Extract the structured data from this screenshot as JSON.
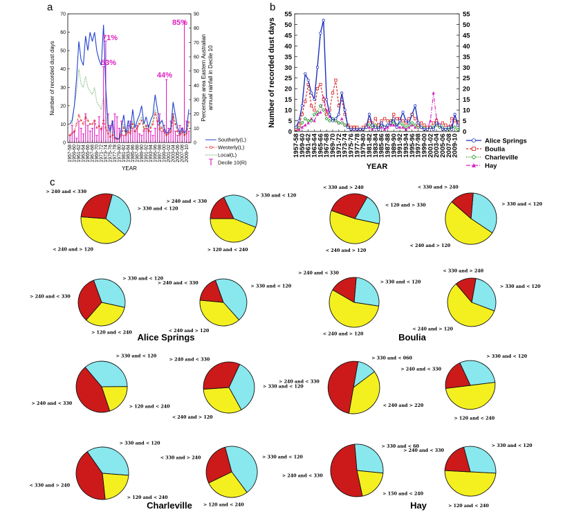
{
  "panel_labels": {
    "a": "a",
    "b": "b",
    "c": "c"
  },
  "colors": {
    "southerly": "#2040d0",
    "westerly": "#e02020",
    "local": "#2a8a2a",
    "decile": "#e020c0",
    "alice": "#1a2fb8",
    "boulia": "#d81818",
    "charleville": "#189018",
    "hay": "#d820c0",
    "pie_cyan": "#88e8ee",
    "pie_red": "#cc1a1a",
    "pie_yellow": "#f4f020"
  },
  "chart_data": [
    {
      "id": "a",
      "type": "line",
      "ylabel_left": "Number of recorded dust days",
      "ylabel_right": "Percentage area Eastern Australian annual rainfall in Decile 10",
      "xlabel": "YEAR",
      "ylim_left": [
        0,
        70
      ],
      "ylim_right": [
        0,
        90
      ],
      "yticks_left": [
        0,
        10,
        20,
        30,
        40,
        50,
        60,
        70
      ],
      "yticks_right": [
        0,
        10,
        20,
        30,
        40,
        50,
        60,
        70,
        80,
        90
      ],
      "x": [
        1957,
        1958,
        1959,
        1960,
        1961,
        1962,
        1963,
        1964,
        1965,
        1966,
        1967,
        1968,
        1969,
        1970,
        1971,
        1972,
        1973,
        1974,
        1975,
        1976,
        1977,
        1978,
        1979,
        1980,
        1981,
        1982,
        1983,
        1984,
        1985,
        1986,
        1987,
        1988,
        1989,
        1990,
        1991,
        1992,
        1993,
        1994,
        1995,
        1996,
        1997,
        1998,
        1999,
        2000,
        2001,
        2002,
        2003,
        2004,
        2005,
        2006,
        2007,
        2008,
        2009,
        2010
      ],
      "x_tick_labels": [
        "1957-58",
        "1959-60",
        "1961-62",
        "1963-64",
        "1965-66",
        "1967-68",
        "1969-70",
        "1971-72",
        "1973-74",
        "1975-76",
        "1977-78",
        "1979-80",
        "1981-82",
        "1983-84",
        "1985-86",
        "1987-88",
        "1989-90",
        "1991-92",
        "1993-94",
        "1995-96",
        "1997-98",
        "1999-00",
        "2001-02",
        "2003-04",
        "2005-06",
        "2007-08",
        "2009-10"
      ],
      "series": [
        {
          "name": "Southerly(L)",
          "axis": "left",
          "values": [
            10,
            12,
            20,
            35,
            55,
            45,
            42,
            58,
            50,
            60,
            55,
            60,
            50,
            45,
            42,
            64,
            30,
            10,
            6,
            12,
            3,
            2,
            2,
            8,
            15,
            5,
            12,
            7,
            18,
            8,
            12,
            15,
            20,
            10,
            14,
            8,
            12,
            15,
            26,
            18,
            10,
            12,
            8,
            5,
            6,
            8,
            22,
            15,
            8,
            5,
            8,
            5,
            7,
            18
          ]
        },
        {
          "name": "Westerly(L)",
          "axis": "left",
          "values": [
            4,
            5,
            6,
            10,
            15,
            12,
            10,
            14,
            12,
            10,
            10,
            12,
            8,
            9,
            7,
            12,
            8,
            5,
            3,
            4,
            2,
            2,
            2,
            4,
            8,
            4,
            6,
            5,
            10,
            6,
            8,
            10,
            12,
            7,
            9,
            6,
            8,
            10,
            16,
            12,
            7,
            8,
            6,
            4,
            5,
            6,
            14,
            10,
            6,
            4,
            6,
            4,
            5,
            11
          ]
        },
        {
          "name": "Local(L)",
          "axis": "left",
          "values": [
            12,
            10,
            20,
            28,
            40,
            32,
            30,
            36,
            30,
            28,
            26,
            30,
            22,
            20,
            18,
            25,
            15,
            8,
            5,
            6,
            2,
            2,
            2,
            5,
            10,
            4,
            8,
            6,
            12,
            6,
            9,
            12,
            14,
            8,
            10,
            6,
            9,
            12,
            18,
            13,
            8,
            9,
            6,
            4,
            5,
            6,
            16,
            11,
            6,
            4,
            6,
            4,
            5,
            12
          ]
        },
        {
          "name": "Decile 10(R)",
          "axis": "right",
          "type": "stem",
          "values": [
            5,
            12,
            8,
            3,
            15,
            10,
            6,
            20,
            12,
            8,
            10,
            15,
            5,
            18,
            10,
            53,
            71,
            20,
            12,
            15,
            20,
            18,
            10,
            15,
            5,
            8,
            12,
            15,
            10,
            8,
            12,
            6,
            5,
            8,
            10,
            12,
            8,
            5,
            10,
            15,
            20,
            8,
            12,
            44,
            10,
            15,
            20,
            8,
            5,
            12,
            10,
            85,
            15,
            8
          ]
        }
      ],
      "annotations": [
        "85%",
        "71%",
        "53%",
        "44%"
      ]
    },
    {
      "id": "b",
      "type": "line",
      "ylabel": "Number of recorded dust days",
      "xlabel": "YEAR",
      "ylim": [
        0,
        55
      ],
      "yticks": [
        0,
        5,
        10,
        15,
        20,
        25,
        30,
        35,
        40,
        45,
        50,
        55
      ],
      "x": [
        1957,
        1958,
        1959,
        1960,
        1961,
        1962,
        1963,
        1964,
        1965,
        1966,
        1967,
        1968,
        1969,
        1970,
        1971,
        1972,
        1973,
        1974,
        1975,
        1976,
        1977,
        1978,
        1979,
        1980,
        1981,
        1982,
        1983,
        1984,
        1985,
        1986,
        1987,
        1988,
        1989,
        1990,
        1991,
        1992,
        1993,
        1994,
        1995,
        1996,
        1997,
        1998,
        1999,
        2000,
        2001,
        2002,
        2003,
        2004,
        2005,
        2006,
        2007,
        2008,
        2009,
        2010
      ],
      "x_tick_labels": [
        "1957-58",
        "1959-60",
        "1961-62",
        "1963-64",
        "1965-66",
        "1967-68",
        "1969-70",
        "1971-72",
        "1973-74",
        "1975-76",
        "1977-78",
        "1979-80",
        "1981-82",
        "1983-84",
        "1985-86",
        "1987-88",
        "1989-90",
        "1991-92",
        "1993-94",
        "1995-96",
        "1997-98",
        "1999-00",
        "2001-02",
        "2003-04",
        "2005-06",
        "2007-08",
        "2009-10"
      ],
      "series": [
        {
          "name": "Alice Springs",
          "values": [
            2,
            5,
            12,
            27,
            24,
            18,
            15,
            30,
            46,
            52,
            15,
            8,
            5,
            6,
            8,
            18,
            10,
            2,
            1,
            1,
            1,
            1,
            1,
            2,
            8,
            3,
            2,
            1,
            4,
            2,
            3,
            4,
            6,
            2,
            5,
            9,
            5,
            4,
            8,
            12,
            4,
            2,
            1,
            1,
            2,
            1,
            4,
            3,
            1,
            1,
            2,
            1,
            8,
            3
          ]
        },
        {
          "name": "Boulia",
          "values": [
            1,
            3,
            8,
            14,
            22,
            12,
            10,
            20,
            22,
            15,
            8,
            10,
            18,
            24,
            12,
            15,
            8,
            3,
            2,
            2,
            2,
            1,
            2,
            3,
            5,
            4,
            6,
            3,
            5,
            6,
            5,
            4,
            8,
            6,
            6,
            5,
            4,
            6,
            8,
            6,
            3,
            4,
            3,
            2,
            2,
            4,
            5,
            3,
            4,
            3,
            2,
            6,
            5,
            4
          ]
        },
        {
          "name": "Charleville",
          "values": [
            1,
            2,
            4,
            6,
            5,
            5,
            8,
            9,
            12,
            10,
            6,
            5,
            6,
            5,
            4,
            4,
            3,
            2,
            1,
            2,
            1,
            1,
            1,
            2,
            3,
            2,
            3,
            2,
            3,
            2,
            3,
            5,
            4,
            3,
            4,
            3,
            2,
            3,
            4,
            3,
            2,
            2,
            2,
            1,
            2,
            2,
            3,
            2,
            2,
            1,
            1,
            2,
            2,
            1
          ]
        },
        {
          "name": "Hay",
          "values": [
            1,
            1,
            2,
            3,
            4,
            6,
            5,
            8,
            9,
            16,
            10,
            7,
            6,
            5,
            4,
            6,
            3,
            2,
            1,
            1,
            1,
            1,
            1,
            2,
            2,
            1,
            2,
            1,
            2,
            1,
            2,
            3,
            3,
            2,
            2,
            2,
            1,
            2,
            3,
            2,
            2,
            2,
            1,
            1,
            5,
            18,
            6,
            3,
            2,
            1,
            2,
            3,
            8,
            3
          ]
        }
      ]
    },
    {
      "id": "c",
      "type": "pie",
      "pies": [
        {
          "slices": [
            {
              "label": "> 330 and < 120",
              "color": "cyan",
              "value": 32
            },
            {
              "label": "< 240 and > 120",
              "color": "yellow",
              "value": 40
            },
            {
              "label": "> 240 and < 330",
              "color": "red",
              "value": 28
            }
          ]
        },
        {
          "slices": [
            {
              "label": "> 330 and < 120",
              "color": "cyan",
              "value": 38
            },
            {
              "label": "> 120 and < 240",
              "color": "yellow",
              "value": 44
            },
            {
              "label": "> 240 and < 330",
              "color": "red",
              "value": 18
            }
          ]
        },
        {
          "slices": [
            {
              "label": "< 120 and > 330",
              "color": "cyan",
              "value": 20
            },
            {
              "label": "< 240 and > 120",
              "color": "yellow",
              "value": 52
            },
            {
              "label": "< 330 and > 240",
              "color": "red",
              "value": 28
            }
          ]
        },
        {
          "slices": [
            {
              "label": "> 330 and < 120",
              "color": "cyan",
              "value": 33
            },
            {
              "label": "< 240 and > 120",
              "color": "yellow",
              "value": 52
            },
            {
              "label": "< 330 and > 240",
              "color": "red",
              "value": 15
            }
          ]
        },
        {
          "slices": [
            {
              "label": "> 330 and < 120",
              "color": "cyan",
              "value": 34
            },
            {
              "label": "> 120 and < 240",
              "color": "yellow",
              "value": 33
            },
            {
              "label": "> 240 and < 330",
              "color": "red",
              "value": 33
            }
          ]
        },
        {
          "slices": [
            {
              "label": "> 330 and < 120",
              "color": "cyan",
              "value": 44
            },
            {
              "label": "< 240 and > 120",
              "color": "yellow",
              "value": 38
            },
            {
              "label": "> 240 and < 330",
              "color": "red",
              "value": 18
            }
          ]
        },
        {
          "slices": [
            {
              "label": "> 330 and < 120",
              "color": "cyan",
              "value": 26
            },
            {
              "label": "< 240 and > 120",
              "color": "yellow",
              "value": 56
            },
            {
              "label": "> 240 and < 330",
              "color": "red",
              "value": 18
            }
          ]
        },
        {
          "slices": [
            {
              "label": "> 330 and < 120",
              "color": "cyan",
              "value": 28
            },
            {
              "label": "< 240 and > 120",
              "color": "yellow",
              "value": 58
            },
            {
              "label": "< 330 and > 240",
              "color": "red",
              "value": 14
            }
          ]
        },
        {
          "slices": [
            {
              "label": "> 330 and < 120",
              "color": "cyan",
              "value": 36
            },
            {
              "label": "> 120 and < 240",
              "color": "yellow",
              "value": 20
            },
            {
              "label": "> 240 and < 330",
              "color": "red",
              "value": 44
            }
          ]
        },
        {
          "slices": [
            {
              "label": "> 330 and < 120",
              "color": "cyan",
              "value": 35
            },
            {
              "label": "< 240 and > 120",
              "color": "yellow",
              "value": 32
            },
            {
              "label": "> 240 and < 330",
              "color": "red",
              "value": 33
            }
          ]
        },
        {
          "slices": [
            {
              "label": "> 330 and < 060",
              "color": "cyan",
              "value": 12
            },
            {
              "label": "< 240 and > 220",
              "color": "yellow",
              "value": 38
            },
            {
              "label": "> 240 and < 330",
              "color": "red",
              "value": 50
            }
          ]
        },
        {
          "slices": [
            {
              "label": "> 330 and < 120",
              "color": "cyan",
              "value": 30
            },
            {
              "label": "> 120 and < 240",
              "color": "yellow",
              "value": 50
            },
            {
              "label": "> 240 and < 330",
              "color": "red",
              "value": 20
            }
          ]
        },
        {
          "slices": [
            {
              "label": "> 330 and < 120",
              "color": "cyan",
              "value": 36
            },
            {
              "label": "> 120 and < 240",
              "color": "yellow",
              "value": 22
            },
            {
              "label": "< 330 and > 240",
              "color": "red",
              "value": 42
            }
          ]
        },
        {
          "slices": [
            {
              "label": "> 330 and < 120",
              "color": "cyan",
              "value": 44
            },
            {
              "label": "> 120 and < 240",
              "color": "yellow",
              "value": 28
            },
            {
              "label": "< 330 and > 240",
              "color": "red",
              "value": 28
            }
          ]
        },
        {
          "slices": [
            {
              "label": "> 330 and < 60",
              "color": "cyan",
              "value": 28
            },
            {
              "label": "> 150 and < 240",
              "color": "yellow",
              "value": 20
            },
            {
              "label": "> 240 and < 330",
              "color": "red",
              "value": 52
            }
          ]
        },
        {
          "slices": [
            {
              "label": "> 330 and < 120",
              "color": "cyan",
              "value": 30
            },
            {
              "label": "> 120 and < 240",
              "color": "yellow",
              "value": 50
            },
            {
              "label": "> 240 and < 330",
              "color": "red",
              "value": 20
            }
          ]
        }
      ],
      "site_labels": [
        "Alice Springs",
        "Boulia",
        "Charleville",
        "Hay"
      ]
    }
  ]
}
